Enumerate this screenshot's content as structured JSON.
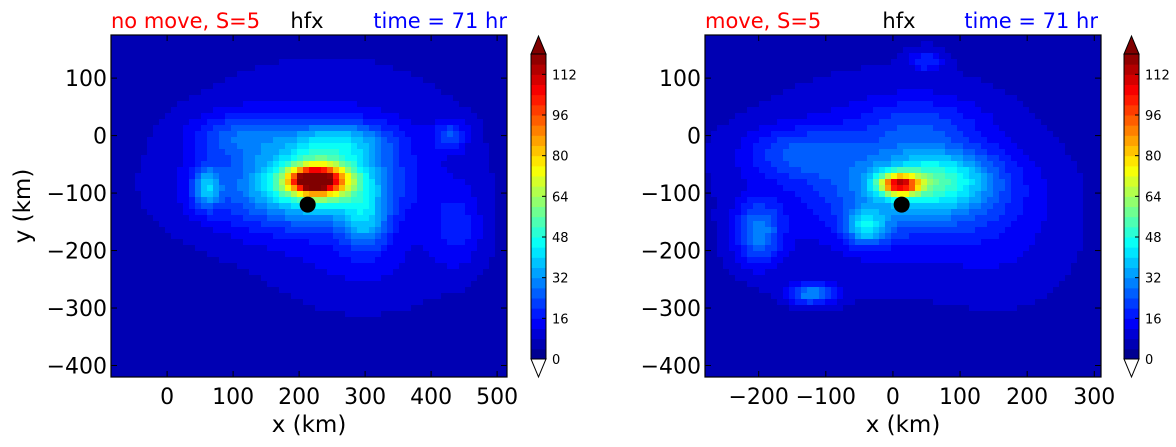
{
  "chart_data": [
    {
      "type": "heatmap",
      "title_left": "no move, S=5",
      "title_center": "hfx",
      "title_right": "time = 71 hr",
      "title_left_color": "#ff0000",
      "title_center_color": "#000000",
      "title_right_color": "#0000ff",
      "xlabel": "x (km)",
      "ylabel": "y (km)",
      "xlim": [
        -85,
        515
      ],
      "ylim": [
        -420,
        175
      ],
      "xticks": [
        0,
        100,
        200,
        300,
        400,
        500
      ],
      "yticks": [
        100,
        0,
        -100,
        -200,
        -300,
        -400
      ],
      "xtick_labels": [
        "0",
        "100",
        "200",
        "300",
        "400",
        "500"
      ],
      "ytick_labels": [
        "100",
        "0",
        "−100",
        "−200",
        "−300",
        "−400"
      ],
      "marker": {
        "x": 213,
        "y": -120
      },
      "features": [
        {
          "x": 190,
          "y": -95,
          "sx": 140,
          "sy": 75,
          "v": 18
        },
        {
          "x": 235,
          "y": -80,
          "sx": 95,
          "sy": 55,
          "v": 25
        },
        {
          "x": 230,
          "y": -78,
          "sx": 48,
          "sy": 28,
          "v": 60
        },
        {
          "x": 220,
          "y": -78,
          "sx": 30,
          "sy": 18,
          "v": 45
        },
        {
          "x": 260,
          "y": -10,
          "sx": 80,
          "sy": 35,
          "v": 22
        },
        {
          "x": 300,
          "y": -150,
          "sx": 35,
          "sy": 50,
          "v": 20
        },
        {
          "x": 60,
          "y": -90,
          "sx": 20,
          "sy": 35,
          "v": 24
        },
        {
          "x": 110,
          "y": 0,
          "sx": 70,
          "sy": 40,
          "v": 14
        },
        {
          "x": 430,
          "y": 0,
          "sx": 25,
          "sy": 25,
          "v": 15
        },
        {
          "x": 440,
          "y": -160,
          "sx": 40,
          "sy": 70,
          "v": 10
        },
        {
          "x": 240,
          "y": -40,
          "sx": 200,
          "sy": 150,
          "v": 8
        },
        {
          "x": 300,
          "y": -230,
          "sx": 120,
          "sy": 80,
          "v": 5
        }
      ]
    },
    {
      "type": "heatmap",
      "title_left": "move, S=5",
      "title_center": "hfx",
      "title_right": "time = 71 hr",
      "title_left_color": "#ff0000",
      "title_center_color": "#000000",
      "title_right_color": "#0000ff",
      "xlabel": "x (km)",
      "ylabel": "",
      "xlim": [
        -280,
        310
      ],
      "ylim": [
        -420,
        175
      ],
      "xticks": [
        -200,
        -100,
        0,
        100,
        200,
        300
      ],
      "yticks": [
        100,
        0,
        -100,
        -200,
        -300,
        -400
      ],
      "xtick_labels": [
        "−200",
        "−100",
        "0",
        "100",
        "200",
        "300"
      ],
      "ytick_labels": [
        "100",
        "0",
        "−100",
        "−200",
        "−300",
        "−400"
      ],
      "marker": {
        "x": 13,
        "y": -120
      },
      "features": [
        {
          "x": 40,
          "y": -95,
          "sx": 130,
          "sy": 75,
          "v": 22
        },
        {
          "x": 70,
          "y": -75,
          "sx": 75,
          "sy": 45,
          "v": 20
        },
        {
          "x": 10,
          "y": -85,
          "sx": 30,
          "sy": 18,
          "v": 70
        },
        {
          "x": -40,
          "y": -160,
          "sx": 30,
          "sy": 30,
          "v": 25
        },
        {
          "x": -120,
          "y": -275,
          "sx": 35,
          "sy": 18,
          "v": 25
        },
        {
          "x": -200,
          "y": -170,
          "sx": 35,
          "sy": 55,
          "v": 22
        },
        {
          "x": -140,
          "y": -30,
          "sx": 80,
          "sy": 45,
          "v": 14
        },
        {
          "x": 40,
          "y": 20,
          "sx": 90,
          "sy": 50,
          "v": 10
        },
        {
          "x": 50,
          "y": 130,
          "sx": 25,
          "sy": 20,
          "v": 12
        },
        {
          "x": -10,
          "y": -80,
          "sx": 200,
          "sy": 160,
          "v": 9
        },
        {
          "x": 170,
          "y": -200,
          "sx": 100,
          "sy": 100,
          "v": 4
        }
      ]
    }
  ],
  "colorbar": {
    "min": 0,
    "max": 120,
    "tick_values": [
      0,
      16,
      32,
      48,
      64,
      80,
      96,
      112
    ],
    "tick_labels": [
      "0",
      "16",
      "32",
      "48",
      "64",
      "80",
      "96",
      "112"
    ]
  },
  "colors": {
    "background_field": "#0000c8",
    "marker": "#000000"
  }
}
